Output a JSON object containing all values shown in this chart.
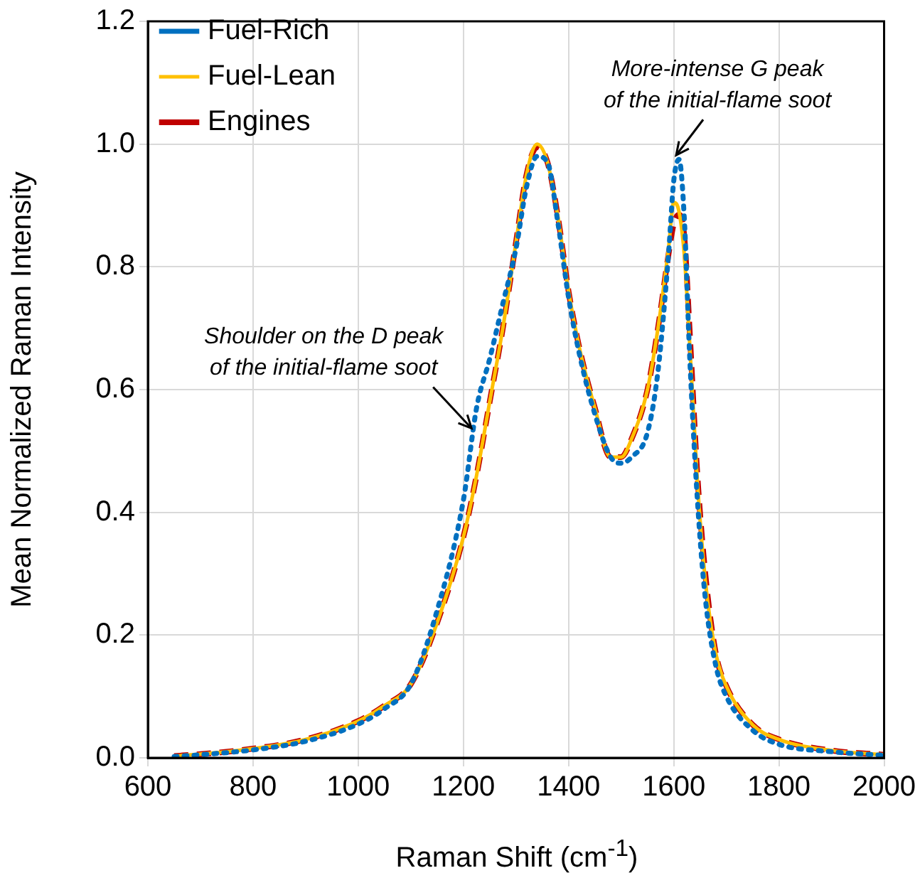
{
  "chart_data": {
    "type": "line",
    "xlabel": "Raman Shift (cm$^{-1}$)",
    "ylabel": "Mean Normalized Raman Intensity",
    "x": [
      650,
      700,
      800,
      900,
      1000,
      1050,
      1100,
      1150,
      1200,
      1225,
      1250,
      1275,
      1300,
      1320,
      1340,
      1360,
      1380,
      1400,
      1420,
      1450,
      1480,
      1500,
      1520,
      1550,
      1570,
      1590,
      1600,
      1610,
      1620,
      1630,
      1645,
      1660,
      1680,
      1700,
      1750,
      1800,
      1900,
      2000
    ],
    "series": [
      {
        "name": "Fuel-Rich",
        "color": "#0070c0",
        "line_style": "dotted",
        "values": [
          0.002,
          0.005,
          0.013,
          0.027,
          0.055,
          0.08,
          0.12,
          0.24,
          0.42,
          0.57,
          0.65,
          0.74,
          0.83,
          0.93,
          0.98,
          0.97,
          0.87,
          0.75,
          0.66,
          0.56,
          0.49,
          0.48,
          0.49,
          0.53,
          0.63,
          0.82,
          0.94,
          0.975,
          0.88,
          0.66,
          0.42,
          0.26,
          0.15,
          0.1,
          0.045,
          0.022,
          0.01,
          0.004
        ]
      },
      {
        "name": "Fuel-Lean",
        "color": "#ffc000",
        "line_style": "solid",
        "values": [
          0.003,
          0.006,
          0.015,
          0.03,
          0.06,
          0.085,
          0.12,
          0.22,
          0.36,
          0.46,
          0.58,
          0.7,
          0.84,
          0.95,
          1.0,
          0.97,
          0.88,
          0.76,
          0.67,
          0.57,
          0.49,
          0.49,
          0.52,
          0.6,
          0.7,
          0.83,
          0.905,
          0.89,
          0.82,
          0.68,
          0.45,
          0.29,
          0.17,
          0.117,
          0.054,
          0.03,
          0.012,
          0.005
        ]
      },
      {
        "name": "Engines",
        "color": "#c00000",
        "line_style": "dashed",
        "values": [
          0.003,
          0.006,
          0.015,
          0.03,
          0.06,
          0.085,
          0.12,
          0.22,
          0.36,
          0.46,
          0.58,
          0.7,
          0.84,
          0.95,
          0.995,
          0.97,
          0.88,
          0.76,
          0.67,
          0.57,
          0.49,
          0.49,
          0.52,
          0.6,
          0.7,
          0.82,
          0.87,
          0.885,
          0.85,
          0.7,
          0.46,
          0.3,
          0.17,
          0.117,
          0.054,
          0.03,
          0.012,
          0.005
        ]
      }
    ],
    "xlim": [
      600,
      2000
    ],
    "xticks": [
      600,
      800,
      1000,
      1200,
      1400,
      1600,
      1800,
      2000
    ],
    "ylim": [
      0,
      1.2
    ],
    "yticks": [
      {
        "value": 0,
        "label": "0.0"
      },
      {
        "value": 0.2,
        "label": "0.2"
      },
      {
        "value": 0.4,
        "label": "0.4"
      },
      {
        "value": 0.6,
        "label": "0.6"
      },
      {
        "value": 0.8,
        "label": "0.8"
      },
      {
        "value": 1,
        "label": "1.0"
      },
      {
        "value": 1.2,
        "label": "1.2"
      }
    ],
    "grid": true,
    "legend": "top left",
    "marker": "none",
    "annotations": [
      {
        "text": "Shoulder on the D peak\nof the initial-flame soot",
        "x": 1210,
        "y": 0.53
      },
      {
        "text": "More-intense G peak\nof the initial-flame soot",
        "x": 1610,
        "y": 0.975
      }
    ]
  }
}
